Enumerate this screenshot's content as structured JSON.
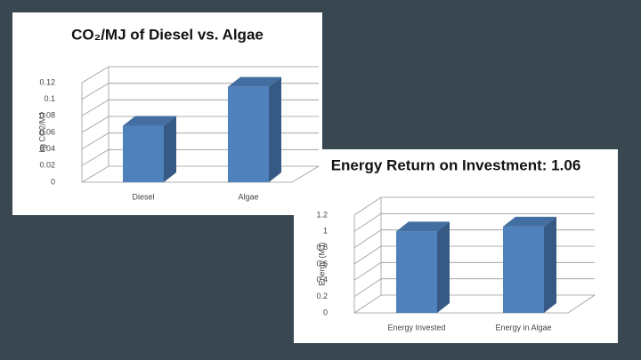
{
  "chart_data": [
    {
      "type": "bar",
      "title": "CO₂/MJ of Diesel vs. Algae",
      "y_label": "kg CO2/MJ",
      "categories": [
        "Diesel",
        "Algae"
      ],
      "values": [
        0.068,
        0.115
      ],
      "color": "#4f81bd",
      "ylim": [
        0,
        0.12
      ],
      "yticks": [
        0,
        0.02,
        0.04,
        0.06,
        0.08,
        0.1,
        0.12
      ],
      "grid": true
    },
    {
      "type": "bar",
      "title": "Energy Return on Investment: 1.06",
      "y_label": "Energy (MJ)",
      "categories": [
        "Energy Invested",
        "Energy in Algae"
      ],
      "values": [
        1,
        1.06
      ],
      "color": "#4f81bd",
      "ylim": [
        0,
        1.2
      ],
      "yticks": [
        0,
        0.2,
        0.4,
        0.6,
        0.8,
        1,
        1.2
      ],
      "grid": true
    }
  ]
}
